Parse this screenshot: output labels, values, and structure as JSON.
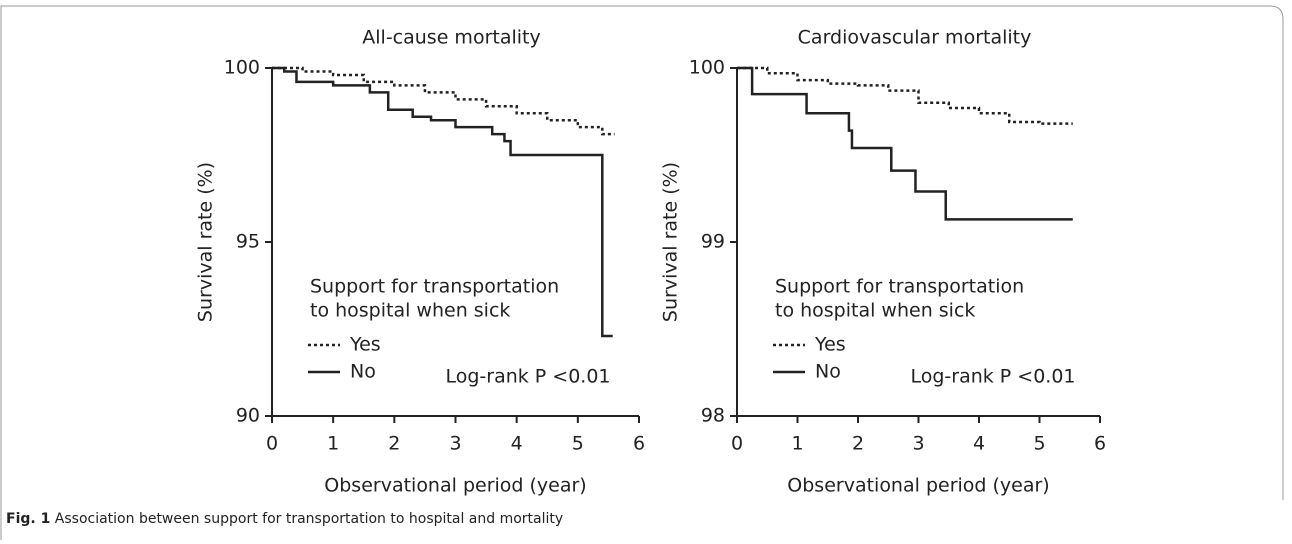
{
  "chart_data": [
    {
      "type": "line",
      "drawstyle": "steps-post",
      "title": "All-cause mortality",
      "xlabel": "Observational period (year)",
      "ylabel": "Survival rate (%)",
      "xlim": [
        0,
        6
      ],
      "xticks": [
        0,
        1,
        2,
        3,
        4,
        5,
        6
      ],
      "ylim": [
        90,
        100
      ],
      "yticks": [
        90,
        95,
        100
      ],
      "legend_title": [
        "Support for transportation",
        "to hospital when sick"
      ],
      "annotation": "Log-rank P <0.01",
      "series": [
        {
          "name": "Yes",
          "color": "#222222",
          "linestyle": "dotted",
          "x": [
            0,
            0.5,
            1,
            1.5,
            2,
            2.5,
            3,
            3.5,
            4,
            4.5,
            5,
            5.4,
            5.6
          ],
          "values": [
            100,
            99.9,
            99.8,
            99.6,
            99.5,
            99.3,
            99.1,
            98.9,
            98.7,
            98.5,
            98.3,
            98.1,
            98.1
          ]
        },
        {
          "name": "No",
          "color": "#222222",
          "linestyle": "solid",
          "x": [
            0,
            0.2,
            0.4,
            1,
            1.6,
            1.9,
            2.3,
            2.6,
            3,
            3.6,
            3.8,
            3.9,
            5.4,
            5.57
          ],
          "values": [
            100,
            99.9,
            99.6,
            99.5,
            99.3,
            98.8,
            98.6,
            98.5,
            98.3,
            98.1,
            97.9,
            97.5,
            92.3,
            92.3
          ]
        }
      ]
    },
    {
      "type": "line",
      "drawstyle": "steps-post",
      "title": "Cardiovascular mortality",
      "xlabel": "Observational period (year)",
      "ylabel": "Survival rate (%)",
      "xlim": [
        0,
        6
      ],
      "xticks": [
        0,
        1,
        2,
        3,
        4,
        5,
        6
      ],
      "ylim": [
        98,
        100
      ],
      "yticks": [
        98,
        99,
        100
      ],
      "legend_title": [
        "Support for transportation",
        "to hospital when sick"
      ],
      "annotation": "Log-rank P <0.01",
      "series": [
        {
          "name": "Yes",
          "color": "#222222",
          "linestyle": "dotted",
          "x": [
            0,
            0.5,
            1,
            1.5,
            2,
            2.5,
            3,
            3.5,
            4,
            4.5,
            5,
            5.55
          ],
          "values": [
            100,
            99.97,
            99.93,
            99.91,
            99.9,
            99.87,
            99.8,
            99.77,
            99.74,
            99.69,
            99.68,
            99.68
          ]
        },
        {
          "name": "No",
          "color": "#222222",
          "linestyle": "solid",
          "x": [
            0,
            0.25,
            1.15,
            1.85,
            1.9,
            2.55,
            2.95,
            3.45,
            5.55
          ],
          "values": [
            100,
            99.85,
            99.74,
            99.64,
            99.54,
            99.41,
            99.29,
            99.13,
            99.13
          ]
        }
      ]
    }
  ],
  "caption": {
    "label": "Fig. 1",
    "text": "Association between support for transportation to hospital and mortality"
  }
}
